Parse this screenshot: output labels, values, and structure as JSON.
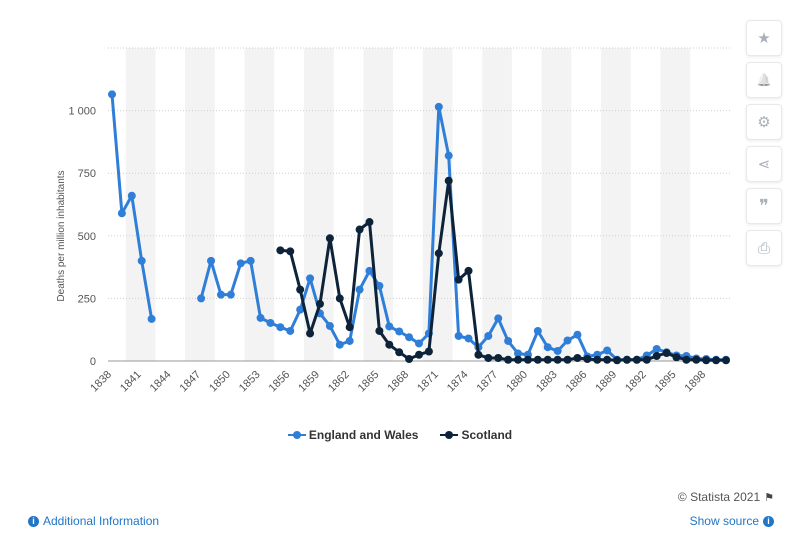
{
  "chart_data": {
    "type": "line",
    "title": "",
    "xlabel": "",
    "ylabel": "Deaths per million inhabitants",
    "ylim": [
      0,
      1250
    ],
    "y_ticks": [
      0,
      250,
      500,
      750,
      1000
    ],
    "y_tick_labels": [
      "0",
      "250",
      "500",
      "750",
      "1 000"
    ],
    "x_range": [
      1838,
      1900
    ],
    "x_ticks": [
      1838,
      1841,
      1844,
      1847,
      1850,
      1853,
      1856,
      1859,
      1862,
      1865,
      1868,
      1871,
      1874,
      1877,
      1880,
      1883,
      1886,
      1889,
      1892,
      1895,
      1898
    ],
    "grid": "horizontal dotted",
    "legend_position": "bottom",
    "series": [
      {
        "name": "England and Wales",
        "color": "#2f7ed8",
        "points": [
          [
            1838,
            1065
          ],
          [
            1839,
            590
          ],
          [
            1840,
            660
          ],
          [
            1841,
            400
          ],
          [
            1842,
            168
          ],
          [
            1847,
            250
          ],
          [
            1848,
            400
          ],
          [
            1849,
            265
          ],
          [
            1850,
            265
          ],
          [
            1851,
            390
          ],
          [
            1852,
            400
          ],
          [
            1853,
            172
          ],
          [
            1854,
            152
          ],
          [
            1855,
            135
          ],
          [
            1856,
            120
          ],
          [
            1857,
            205
          ],
          [
            1858,
            330
          ],
          [
            1859,
            190
          ],
          [
            1860,
            140
          ],
          [
            1861,
            65
          ],
          [
            1862,
            80
          ],
          [
            1863,
            285
          ],
          [
            1864,
            360
          ],
          [
            1865,
            300
          ],
          [
            1866,
            138
          ],
          [
            1867,
            118
          ],
          [
            1868,
            95
          ],
          [
            1869,
            70
          ],
          [
            1870,
            110
          ],
          [
            1871,
            1015
          ],
          [
            1872,
            820
          ],
          [
            1873,
            100
          ],
          [
            1874,
            90
          ],
          [
            1875,
            55
          ],
          [
            1876,
            100
          ],
          [
            1877,
            170
          ],
          [
            1878,
            80
          ],
          [
            1879,
            30
          ],
          [
            1880,
            25
          ],
          [
            1881,
            120
          ],
          [
            1882,
            55
          ],
          [
            1883,
            40
          ],
          [
            1884,
            82
          ],
          [
            1885,
            105
          ],
          [
            1886,
            18
          ],
          [
            1887,
            25
          ],
          [
            1888,
            42
          ],
          [
            1889,
            5
          ],
          [
            1890,
            5
          ],
          [
            1891,
            5
          ],
          [
            1892,
            22
          ],
          [
            1893,
            48
          ],
          [
            1894,
            35
          ],
          [
            1895,
            22
          ],
          [
            1896,
            20
          ],
          [
            1897,
            10
          ],
          [
            1898,
            8
          ],
          [
            1899,
            5
          ],
          [
            1900,
            5
          ]
        ]
      },
      {
        "name": "Scotland",
        "color": "#0d233a",
        "points": [
          [
            1855,
            442
          ],
          [
            1856,
            438
          ],
          [
            1857,
            285
          ],
          [
            1858,
            110
          ],
          [
            1859,
            228
          ],
          [
            1860,
            490
          ],
          [
            1861,
            250
          ],
          [
            1862,
            135
          ],
          [
            1863,
            525
          ],
          [
            1864,
            555
          ],
          [
            1865,
            120
          ],
          [
            1866,
            65
          ],
          [
            1867,
            35
          ],
          [
            1868,
            8
          ],
          [
            1869,
            25
          ],
          [
            1870,
            38
          ],
          [
            1871,
            430
          ],
          [
            1872,
            720
          ],
          [
            1873,
            325
          ],
          [
            1874,
            360
          ],
          [
            1875,
            25
          ],
          [
            1876,
            12
          ],
          [
            1877,
            12
          ],
          [
            1878,
            5
          ],
          [
            1879,
            5
          ],
          [
            1880,
            5
          ],
          [
            1881,
            5
          ],
          [
            1882,
            5
          ],
          [
            1883,
            5
          ],
          [
            1884,
            5
          ],
          [
            1885,
            12
          ],
          [
            1886,
            8
          ],
          [
            1887,
            5
          ],
          [
            1888,
            5
          ],
          [
            1889,
            3
          ],
          [
            1890,
            5
          ],
          [
            1891,
            5
          ],
          [
            1892,
            5
          ],
          [
            1893,
            20
          ],
          [
            1894,
            32
          ],
          [
            1895,
            15
          ],
          [
            1896,
            5
          ],
          [
            1897,
            5
          ],
          [
            1898,
            3
          ],
          [
            1899,
            3
          ],
          [
            1900,
            3
          ]
        ]
      }
    ]
  },
  "toolbar": {
    "buttons": [
      {
        "name": "favorite-button",
        "icon": "star-icon",
        "glyph": "★"
      },
      {
        "name": "notification-button",
        "icon": "bell-icon",
        "glyph": "🔔"
      },
      {
        "name": "settings-button",
        "icon": "gear-icon",
        "glyph": "⚙"
      },
      {
        "name": "share-button",
        "icon": "share-icon",
        "glyph": "⋖"
      },
      {
        "name": "cite-button",
        "icon": "quote-icon",
        "glyph": "❞"
      },
      {
        "name": "print-button",
        "icon": "print-icon",
        "glyph": "⎙"
      }
    ]
  },
  "legend": {
    "items": [
      {
        "label": "England and Wales",
        "color": "#2f7ed8"
      },
      {
        "label": "Scotland",
        "color": "#0d233a"
      }
    ]
  },
  "footer": {
    "credit": "© Statista 2021",
    "additional_info": "Additional Information",
    "show_source": "Show source"
  }
}
